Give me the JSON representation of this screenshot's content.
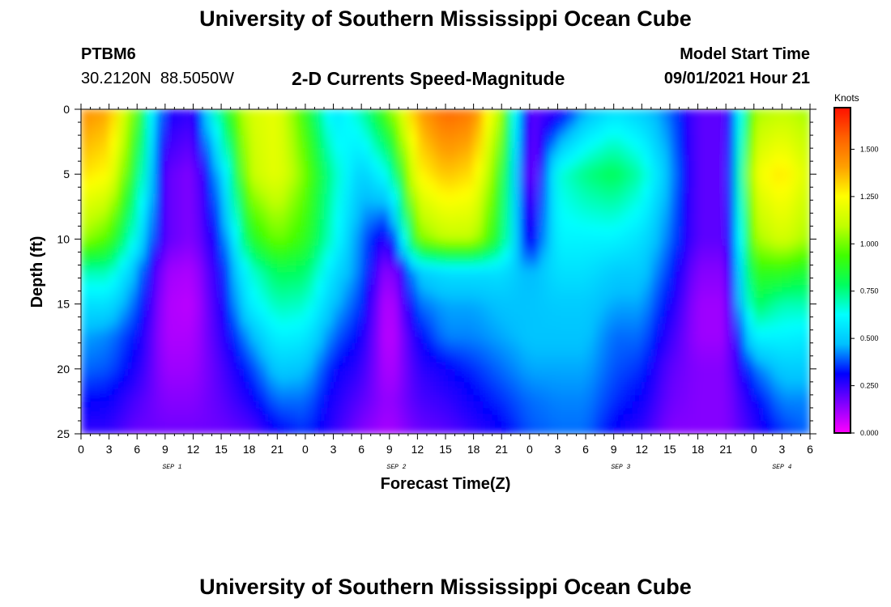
{
  "header": {
    "title": "University of Southern Mississippi Ocean Cube",
    "station": "PTBM6",
    "coords": "30.2120N  88.5050W",
    "subtitle": "2-D Currents Speed-Magnitude",
    "model_start_label": "Model Start Time",
    "model_start_value": "09/01/2021 Hour 21"
  },
  "footer": {
    "title": "University of Southern Mississippi Ocean Cube"
  },
  "colors": {
    "colorscale": [
      "#ff00ff",
      "#8000ff",
      "#0000ff",
      "#00c0ff",
      "#00ffff",
      "#00ff60",
      "#40ff00",
      "#c0ff00",
      "#ffff00",
      "#ffa000",
      "#ff6000",
      "#ff1000"
    ]
  },
  "chart_data": {
    "type": "heatmap",
    "xlabel": "Forecast Time(Z)",
    "ylabel": "Depth (ft)",
    "x_tick_labels": [
      "0",
      "3",
      "6",
      "9",
      "12",
      "15",
      "18",
      "21",
      "0",
      "3",
      "6",
      "9",
      "12",
      "15",
      "18",
      "21",
      "0",
      "3",
      "6",
      "9",
      "12",
      "15",
      "18",
      "21",
      "0",
      "3",
      "6"
    ],
    "date_labels": [
      {
        "label": "SEP 1",
        "hour": 9.75
      },
      {
        "label": "SEP 2",
        "hour": 33.75
      },
      {
        "label": "SEP 3",
        "hour": 57.75
      },
      {
        "label": "SEP 4",
        "hour": 75
      }
    ],
    "xlim_hours": [
      0,
      78
    ],
    "y_ticks": [
      0,
      5,
      10,
      15,
      20,
      25
    ],
    "ylim": [
      0,
      25
    ],
    "y_inverted": true,
    "colorbar": {
      "label": "Knots",
      "ticks": [
        "0.000",
        "0.250",
        "0.500",
        "0.750",
        "1.000",
        "1.250",
        "1.500"
      ],
      "range": [
        0,
        1.72
      ]
    },
    "hours": [
      0,
      3,
      6,
      9,
      12,
      15,
      18,
      21,
      24,
      27,
      30,
      33,
      36,
      39,
      42,
      45,
      48,
      51,
      54,
      57,
      60,
      63,
      66,
      69,
      72,
      75,
      78
    ],
    "depths_ft": [
      0,
      5,
      10,
      12.5,
      15,
      17.5,
      20,
      22.5,
      25
    ],
    "speed_knots": [
      [
        1.45,
        1.4,
        0.95,
        0.3,
        0.25,
        0.8,
        1.15,
        1.2,
        0.9,
        0.55,
        0.7,
        1.0,
        1.4,
        1.55,
        1.5,
        1.05,
        0.2,
        0.25,
        0.45,
        0.55,
        0.5,
        0.4,
        0.2,
        0.2,
        1.05,
        1.1,
        1.05
      ],
      [
        1.3,
        1.25,
        0.8,
        0.2,
        0.15,
        0.5,
        1.1,
        1.2,
        1.0,
        0.7,
        0.5,
        0.65,
        1.25,
        1.35,
        1.3,
        0.9,
        0.1,
        0.65,
        0.75,
        0.8,
        0.7,
        0.45,
        0.2,
        0.2,
        1.2,
        1.3,
        1.15
      ],
      [
        1.05,
        0.95,
        0.6,
        0.2,
        0.15,
        0.35,
        0.85,
        1.0,
        0.9,
        0.65,
        0.4,
        0.25,
        1.0,
        1.1,
        1.1,
        0.8,
        0.25,
        0.6,
        0.6,
        0.6,
        0.55,
        0.4,
        0.2,
        0.2,
        1.05,
        1.15,
        1.05
      ],
      [
        0.7,
        0.7,
        0.45,
        0.12,
        0.1,
        0.3,
        0.65,
        0.8,
        0.78,
        0.55,
        0.4,
        0.1,
        0.5,
        0.55,
        0.55,
        0.55,
        0.45,
        0.55,
        0.55,
        0.5,
        0.5,
        0.35,
        0.15,
        0.15,
        0.9,
        0.9,
        0.85
      ],
      [
        0.55,
        0.55,
        0.38,
        0.1,
        0.08,
        0.28,
        0.58,
        0.7,
        0.68,
        0.48,
        0.35,
        0.05,
        0.4,
        0.45,
        0.45,
        0.48,
        0.48,
        0.5,
        0.5,
        0.45,
        0.45,
        0.3,
        0.12,
        0.12,
        0.8,
        0.7,
        0.7
      ],
      [
        0.45,
        0.42,
        0.32,
        0.1,
        0.1,
        0.25,
        0.45,
        0.6,
        0.58,
        0.4,
        0.3,
        0.05,
        0.3,
        0.42,
        0.42,
        0.45,
        0.48,
        0.48,
        0.48,
        0.4,
        0.4,
        0.25,
        0.12,
        0.12,
        0.6,
        0.6,
        0.58
      ],
      [
        0.4,
        0.38,
        0.28,
        0.12,
        0.12,
        0.22,
        0.35,
        0.5,
        0.48,
        0.32,
        0.25,
        0.08,
        0.25,
        0.3,
        0.35,
        0.4,
        0.45,
        0.45,
        0.45,
        0.38,
        0.35,
        0.2,
        0.15,
        0.15,
        0.4,
        0.5,
        0.5
      ],
      [
        0.32,
        0.3,
        0.22,
        0.15,
        0.15,
        0.2,
        0.28,
        0.4,
        0.4,
        0.28,
        0.2,
        0.12,
        0.22,
        0.25,
        0.3,
        0.35,
        0.4,
        0.42,
        0.42,
        0.35,
        0.3,
        0.18,
        0.15,
        0.15,
        0.3,
        0.42,
        0.42
      ],
      [
        0.25,
        0.25,
        0.18,
        0.18,
        0.18,
        0.18,
        0.2,
        0.3,
        0.35,
        0.25,
        0.15,
        0.1,
        0.18,
        0.2,
        0.25,
        0.3,
        0.38,
        0.4,
        0.4,
        0.3,
        0.25,
        0.15,
        0.15,
        0.15,
        0.25,
        0.35,
        0.4
      ]
    ]
  }
}
